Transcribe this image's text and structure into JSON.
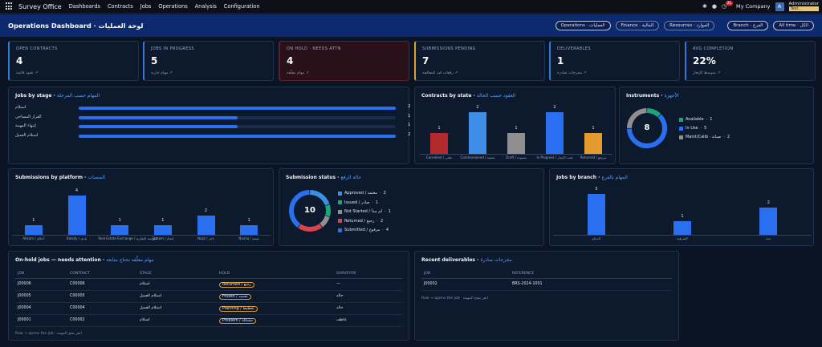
{
  "nav": {
    "brand": "Survey Office",
    "menu": [
      "Dashboards",
      "Contracts",
      "Jobs",
      "Operations",
      "Analysis",
      "Configuration"
    ],
    "notif_count": "21",
    "company": "My Company",
    "avatar": "A",
    "user_name": "Administrator",
    "user_tag": "Test..."
  },
  "header": {
    "title": "Operations Dashboard · لوحة العمليات",
    "chips": [
      "Operations · العمليات",
      "Finance · المالية",
      "Resources · الموارد",
      "Branch · الفرع",
      "All time · الكل"
    ]
  },
  "kpis": [
    {
      "label": "OPEN CONTRACTS",
      "value": "4",
      "sub": "عقود قائمة ↗",
      "color": "#2f7bd8"
    },
    {
      "label": "JOBS IN PROGRESS",
      "value": "5",
      "sub": "مهام جارية ↗",
      "color": "#2f7bd8"
    },
    {
      "label": "ON HOLD · NEEDS ATTN",
      "value": "4",
      "sub": "مهام معلّقة ↗",
      "color": "#d9303b"
    },
    {
      "label": "SUBMISSIONS PENDING",
      "value": "7",
      "sub": "رفعات قيد المعالجة ↗",
      "color": "#e0a030"
    },
    {
      "label": "DELIVERABLES",
      "value": "1",
      "sub": "مخرجات صادرة ↗",
      "color": "#2f7bd8"
    },
    {
      "label": "AVG COMPLETION",
      "value": "22%",
      "sub": "متوسط الإنجاز ↗",
      "color": "#2f7bd8"
    }
  ],
  "jobs_by_stage": {
    "title": "Jobs by stage · ",
    "title_ar": "المهام حسب المرحلة",
    "chart_data": {
      "type": "bar",
      "orientation": "horizontal",
      "categories": [
        "استلام",
        "القرار المساحي",
        "إنتهاء المهمة",
        "استلام العميل"
      ],
      "values": [
        2,
        1,
        1,
        2
      ],
      "max": 2
    }
  },
  "contracts_by_state": {
    "title": "Contracts by state · ",
    "title_ar": "العقود حسب الحالة",
    "chart_data": {
      "type": "bar",
      "categories": [
        "Cancelled / ملغى",
        "Commissioned / معتمد",
        "Draft / مسودة",
        "In Progress / تحت الإنجاز",
        "Returned / مرتجع"
      ],
      "values": [
        1,
        2,
        1,
        2,
        1
      ],
      "colors": [
        "#b32a2a",
        "#3d8ee6",
        "#8f8f8f",
        "#2a6ff0",
        "#e39b2d"
      ],
      "ylim": [
        0,
        2
      ]
    }
  },
  "instruments": {
    "title": "Instruments · ",
    "title_ar": "الأجهزة",
    "total": "8",
    "chart_data": {
      "type": "pie",
      "labels": [
        "Available",
        "In Use",
        "Maint/Calib · صيانة"
      ],
      "values": [
        1,
        5,
        2
      ],
      "colors": [
        "#1fa37a",
        "#2a6ff0",
        "#8f8f8f"
      ]
    }
  },
  "submissions_by_platform": {
    "title": "Submissions by platform · ",
    "title_ar": "المنصات",
    "chart_data": {
      "type": "bar",
      "categories": [
        "Ahkam / أحكام",
        "Balady / بلدي",
        "Real Estate Exchange / البورصة العقارية",
        "Etmam / إتمام",
        "Najiz / ناجز",
        "Naima / نعيمة"
      ],
      "values": [
        1,
        4,
        1,
        1,
        2,
        1
      ],
      "ylim": [
        0,
        4
      ]
    }
  },
  "submission_status": {
    "title": "Submission status · ",
    "title_ar": "حالة الرفع",
    "total": "10",
    "chart_data": {
      "type": "pie",
      "labels": [
        "Approved / معتمد",
        "Issued / صادر",
        "Not Started / لم يبدأ",
        "Returned / رجيع",
        "Submitted / مرفوع"
      ],
      "values": [
        2,
        1,
        1,
        2,
        4
      ],
      "colors": [
        "#3d8ee6",
        "#1fa37a",
        "#8f8f8f",
        "#d9434b",
        "#2a6ff0"
      ]
    }
  },
  "jobs_by_branch": {
    "title": "Jobs by branch · ",
    "title_ar": "المهام بالفرع",
    "chart_data": {
      "type": "bar",
      "categories": [
        "الدمام",
        "الشرقية",
        "جدة"
      ],
      "values": [
        3,
        1,
        2
      ],
      "ylim": [
        0,
        3
      ]
    }
  },
  "on_hold": {
    "title": "On-hold jobs — needs attention · ",
    "title_ar": "مهام معلّقة تحتاج متابعة",
    "columns": [
      "JOB",
      "CONTRACT",
      "STAGE",
      "HOLD",
      "SURVEYOR"
    ],
    "rows": [
      {
        "job": "J00006",
        "contract": "C00006",
        "stage": "استلام",
        "hold": "Returned / رجيع",
        "surveyor": "—"
      },
      {
        "job": "J00005",
        "contract": "C00005",
        "stage": "استلام العميل",
        "hold": "Frozen / تجميد",
        "surveyor": "خالد"
      },
      {
        "job": "J00004",
        "contract": "C00004",
        "stage": "استلام العميل",
        "hold": "Planning / تخطيط",
        "surveyor": "خالد"
      },
      {
        "job": "J00001",
        "contract": "C00002",
        "stage": "استلام",
        "hold": "Problem / مشكلة",
        "surveyor": "عاطف"
      }
    ],
    "footer": "Row → opens the job · انقر يفتح المهمة"
  },
  "deliverables": {
    "title": "Recent deliverables · ",
    "title_ar": "مخرجات صادرة",
    "columns": [
      "JOB",
      "REFERENCE"
    ],
    "rows": [
      {
        "job": "J00002",
        "reference": "BRS-2024-1001"
      }
    ],
    "footer": "Row → opens the job · انقر يفتح المهمة"
  }
}
